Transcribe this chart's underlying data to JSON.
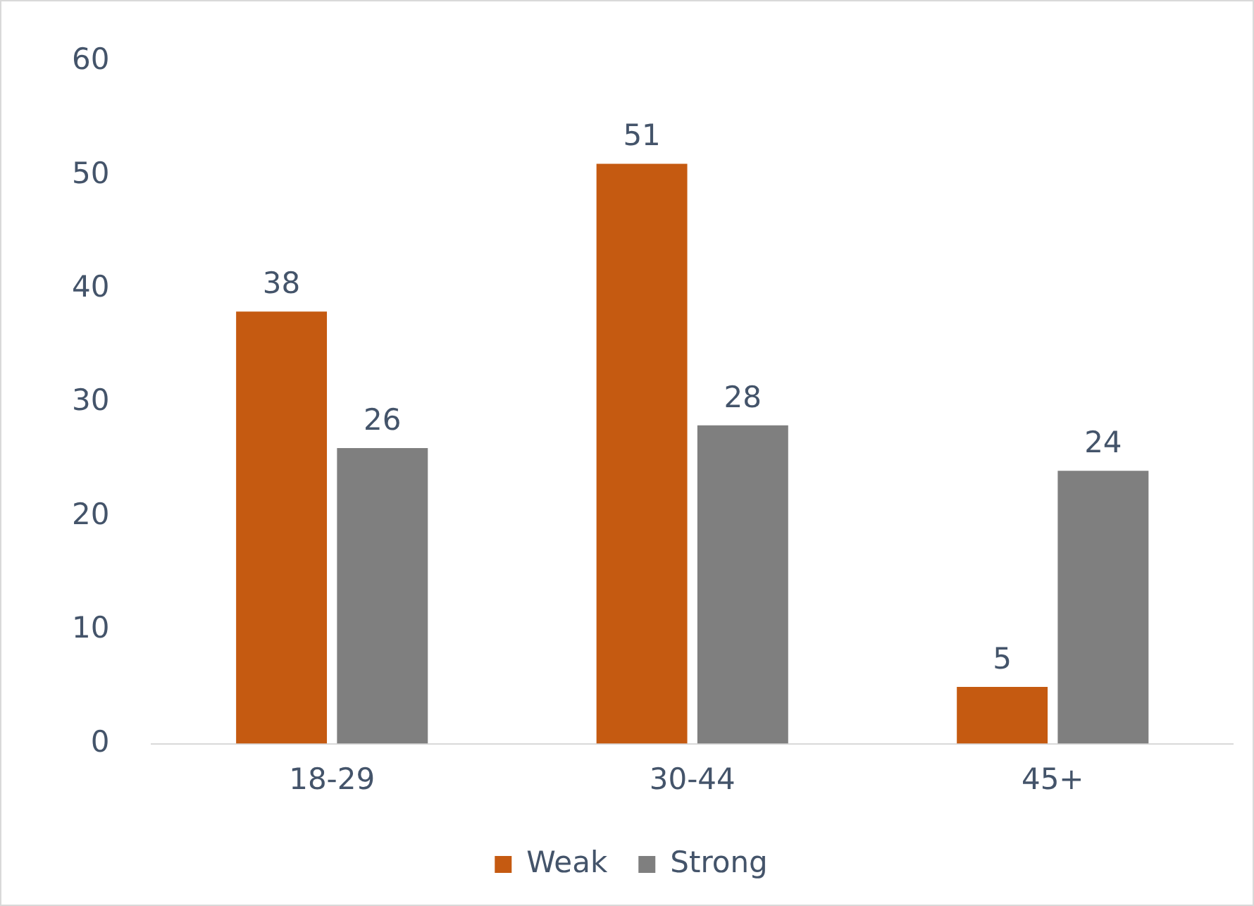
{
  "chart_data": {
    "type": "bar",
    "categories": [
      "18-29",
      "30-44",
      "45+"
    ],
    "series": [
      {
        "name": "Weak",
        "color": "#c55a11",
        "values": [
          38,
          51,
          5
        ]
      },
      {
        "name": "Strong",
        "color": "#7f7f7f",
        "values": [
          26,
          28,
          24
        ]
      }
    ],
    "ylim": [
      0,
      60
    ],
    "yticks": [
      0,
      10,
      20,
      30,
      40,
      50,
      60
    ],
    "grid": false,
    "legend": "bottom",
    "data_labels": true
  }
}
